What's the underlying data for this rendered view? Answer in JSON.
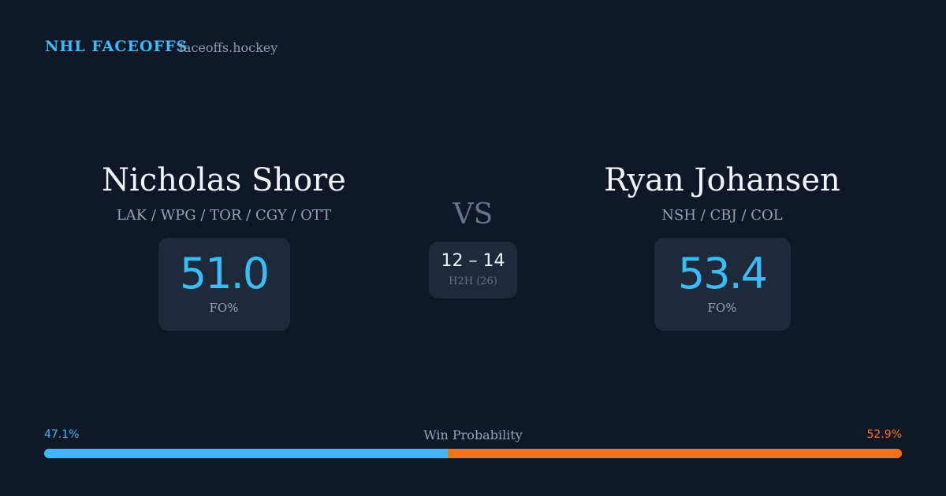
{
  "header": {
    "title": "NHL FACEOFFS",
    "site": "faceoffs.hockey"
  },
  "players": [
    {
      "name": "Nicholas Shore",
      "teams": "LAK / WPG / TOR / CGY / OTT",
      "fo_pct": "51.0",
      "fo_label": "FO%"
    },
    {
      "name": "Ryan Johansen",
      "teams": "NSH / CBJ / COL",
      "fo_pct": "53.4",
      "fo_label": "FO%"
    }
  ],
  "versus": "VS",
  "h2h": {
    "record": "12 – 14",
    "label": "H2H (26)"
  },
  "win_probability": {
    "title": "Win Probability",
    "left": {
      "value": 47.1,
      "label": "47.1%",
      "color": "#38bdf8"
    },
    "right": {
      "value": 52.9,
      "label": "52.9%",
      "color": "#f97316"
    }
  }
}
